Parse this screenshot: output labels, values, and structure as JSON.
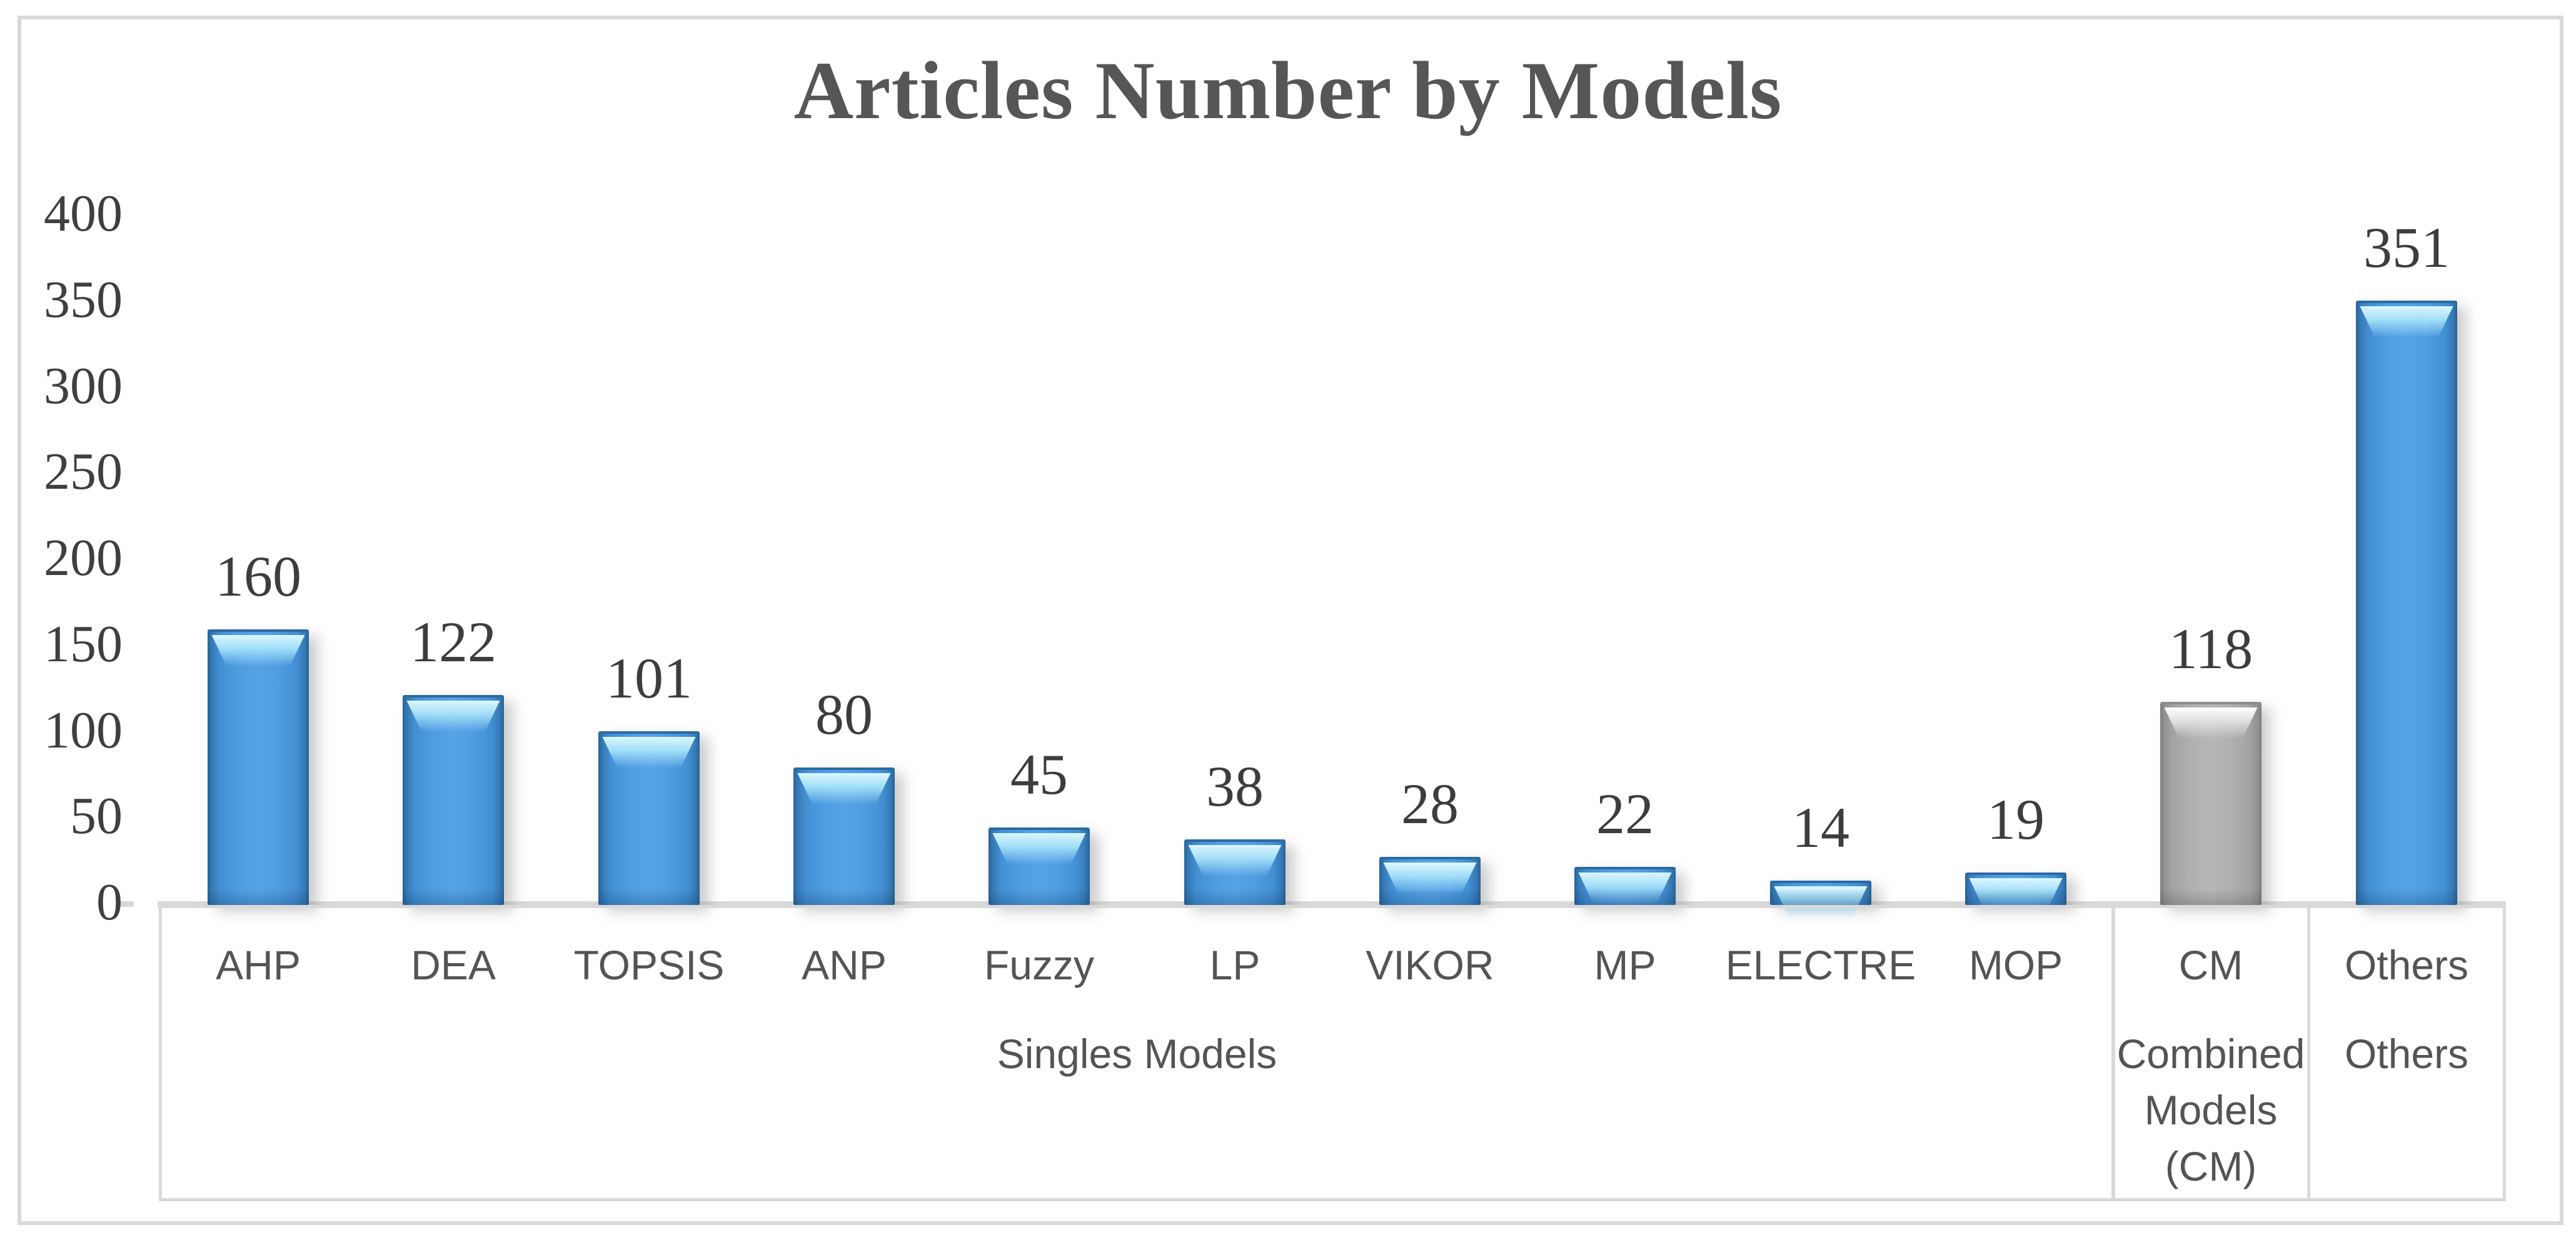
{
  "chart_data": {
    "type": "bar",
    "title": "Articles Number by Models",
    "categories": [
      "AHP",
      "DEA",
      "TOPSIS",
      "ANP",
      "Fuzzy",
      "LP",
      "VIKOR",
      "MP",
      "ELECTRE",
      "MOP",
      "CM",
      "Others"
    ],
    "values": [
      160,
      122,
      101,
      80,
      45,
      38,
      28,
      22,
      14,
      19,
      118,
      351
    ],
    "bar_styles": [
      "blue",
      "blue",
      "blue",
      "blue",
      "blue",
      "blue",
      "blue",
      "blue",
      "blue",
      "blue",
      "gray",
      "blue"
    ],
    "data_labels": [
      160,
      122,
      101,
      80,
      45,
      38,
      28,
      22,
      14,
      19,
      118,
      351
    ],
    "groups": [
      {
        "label": "Singles Models",
        "lines": [
          "Singles Models"
        ],
        "span": 10
      },
      {
        "label": "Combined Models (CM)",
        "lines": [
          "Combined",
          "Models",
          "(CM)"
        ],
        "span": 1
      },
      {
        "label": "Others",
        "lines": [
          "Others"
        ],
        "span": 1
      }
    ],
    "xlabel": "",
    "ylabel": "",
    "ylim": [
      0,
      400
    ],
    "yticks": [
      400,
      350,
      300,
      250,
      200,
      150,
      100,
      50,
      0
    ],
    "grid": false,
    "legend_position": "none"
  },
  "colors": {
    "bar_blue": "#3f8dd3",
    "bar_gray": "#aaaaaa",
    "axis_border": "#d9d9d9",
    "title_text": "#565656",
    "number_text": "#3d3d3d",
    "category_text": "#545454",
    "background": "#ffffff"
  }
}
